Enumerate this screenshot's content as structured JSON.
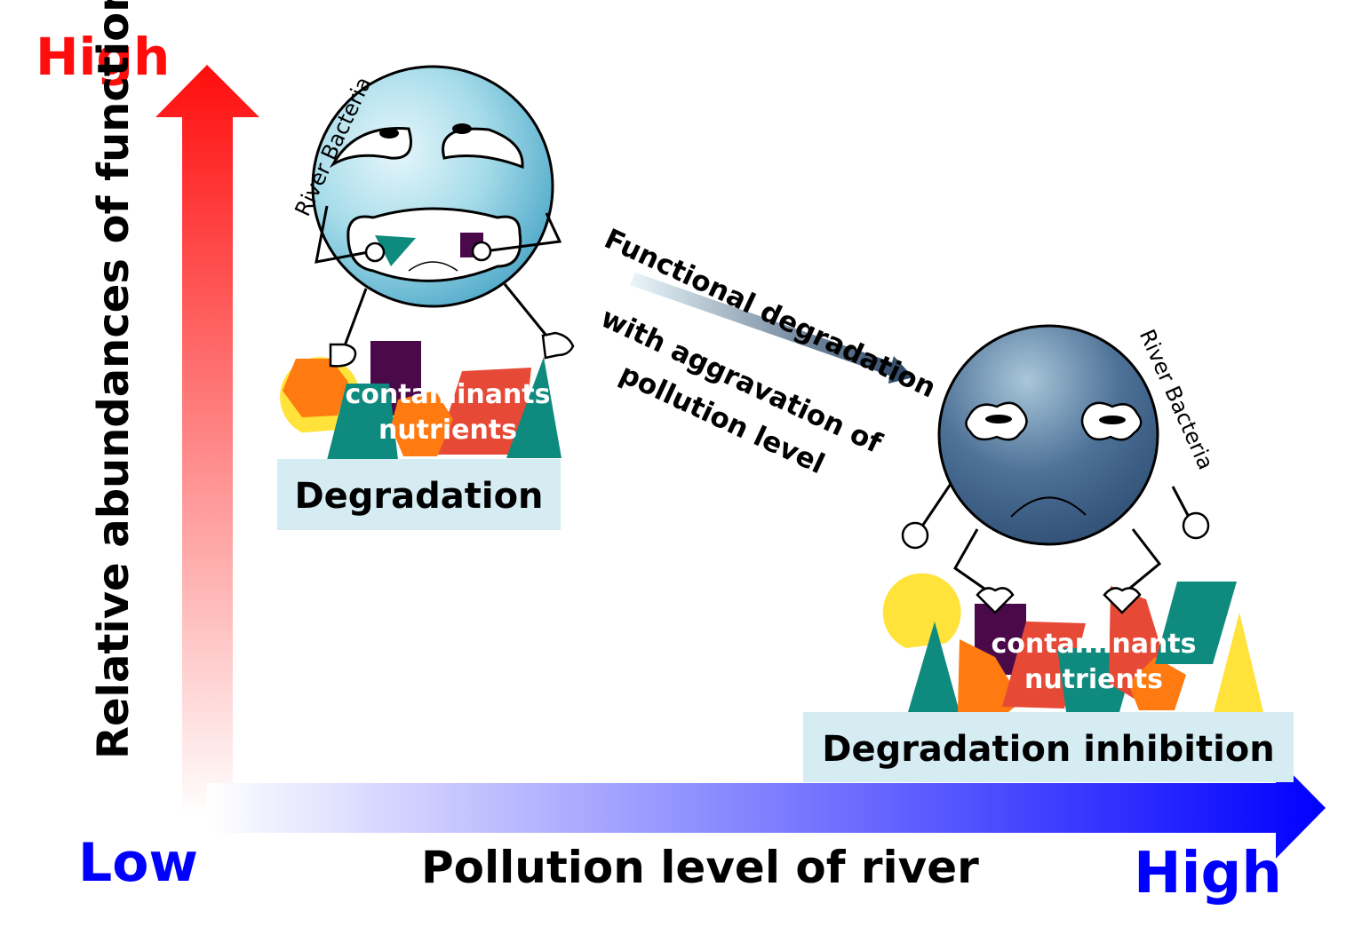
{
  "colors": {
    "high_axis": "#ff0d0d",
    "low_x": "#0000ff",
    "high_x": "#0000ff",
    "box_fill": "#d6ecf3",
    "bacteria_happy": "#8fd0e4",
    "bacteria_sad": "#3d5a80"
  },
  "y_axis": {
    "high_label": "High",
    "title": "Relative abundances of functional genes"
  },
  "x_axis": {
    "low_label": "Low",
    "high_label": "High",
    "title": "Pollution level of river"
  },
  "left_scene": {
    "bacteria_label": "River Bacteria",
    "pile_text_1": "contaminants",
    "pile_text_2": "nutrients",
    "box_label": "Degradation"
  },
  "right_scene": {
    "bacteria_label": "River Bacteria",
    "pile_text_1": "contaminants",
    "pile_text_2": "nutrients",
    "box_label": "Degradation inhibition"
  },
  "transition": {
    "line1": "Functional degradation",
    "line2": "with aggravation of",
    "line3": "pollution level"
  }
}
